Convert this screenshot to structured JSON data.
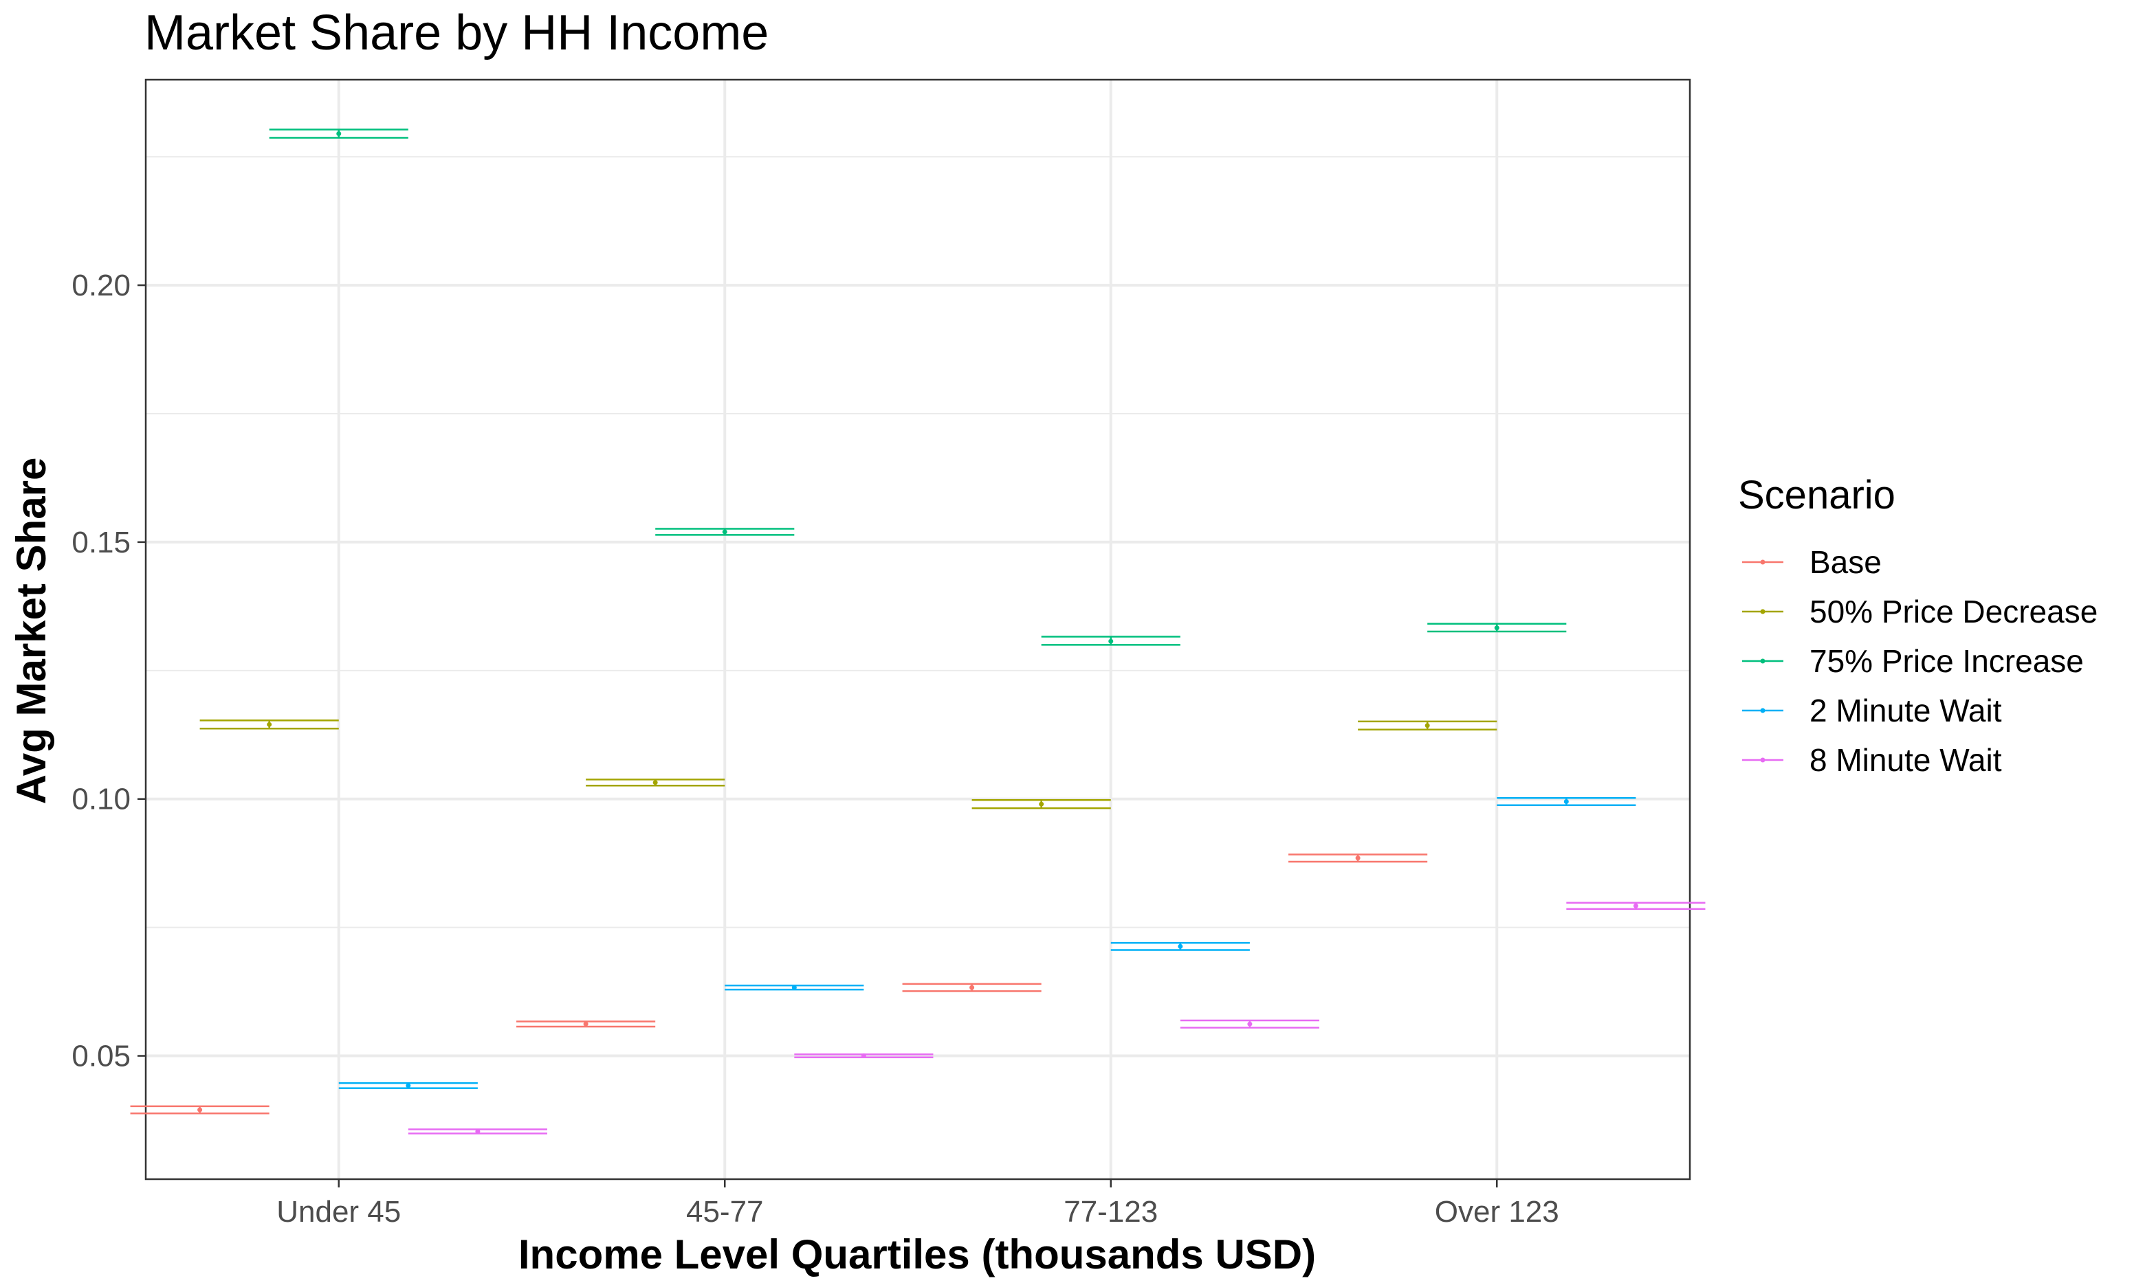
{
  "chart_data": {
    "type": "errorbar",
    "title": "Market Share by HH Income",
    "xlabel": "Income Level Quartiles (thousands USD)",
    "ylabel": "Avg Market Share",
    "categories": [
      "Under 45",
      "45-77",
      "77-123",
      "Over 123"
    ],
    "ylim": [
      0.026,
      0.24
    ],
    "yticks": [
      0.05,
      0.1,
      0.15,
      0.2
    ],
    "ytick_labels": [
      "0.05",
      "0.10",
      "0.15",
      "0.20"
    ],
    "grid": true,
    "legend": {
      "title": "Scenario",
      "position": "right"
    },
    "series": [
      {
        "name": "Base",
        "color": "#F8766D",
        "values": [
          0.0395,
          0.0562,
          0.0633,
          0.0885
        ],
        "lower": [
          0.0388,
          0.0557,
          0.0626,
          0.0878
        ],
        "upper": [
          0.0402,
          0.0567,
          0.064,
          0.0892
        ]
      },
      {
        "name": "50% Price Decrease",
        "color": "#A3A500",
        "values": [
          0.1145,
          0.1032,
          0.099,
          0.1143
        ],
        "lower": [
          0.1137,
          0.1026,
          0.0982,
          0.1135
        ],
        "upper": [
          0.1153,
          0.1038,
          0.0998,
          0.1151
        ]
      },
      {
        "name": "75% Price Increase",
        "color": "#00BF7D",
        "values": [
          0.2295,
          0.152,
          0.1307,
          0.1333
        ],
        "lower": [
          0.2287,
          0.1514,
          0.13,
          0.1326
        ],
        "upper": [
          0.2303,
          0.1526,
          0.1316,
          0.1341
        ]
      },
      {
        "name": "2 Minute Wait",
        "color": "#00B0F6",
        "values": [
          0.0442,
          0.0633,
          0.0713,
          0.0995
        ],
        "lower": [
          0.0437,
          0.0629,
          0.0706,
          0.0988
        ],
        "upper": [
          0.0447,
          0.0637,
          0.072,
          0.1002
        ]
      },
      {
        "name": "8 Minute Wait",
        "color": "#E76BF3",
        "values": [
          0.0353,
          0.05,
          0.0562,
          0.0792
        ],
        "lower": [
          0.0349,
          0.0497,
          0.0555,
          0.0786
        ],
        "upper": [
          0.0357,
          0.0503,
          0.0569,
          0.0798
        ]
      }
    ]
  }
}
